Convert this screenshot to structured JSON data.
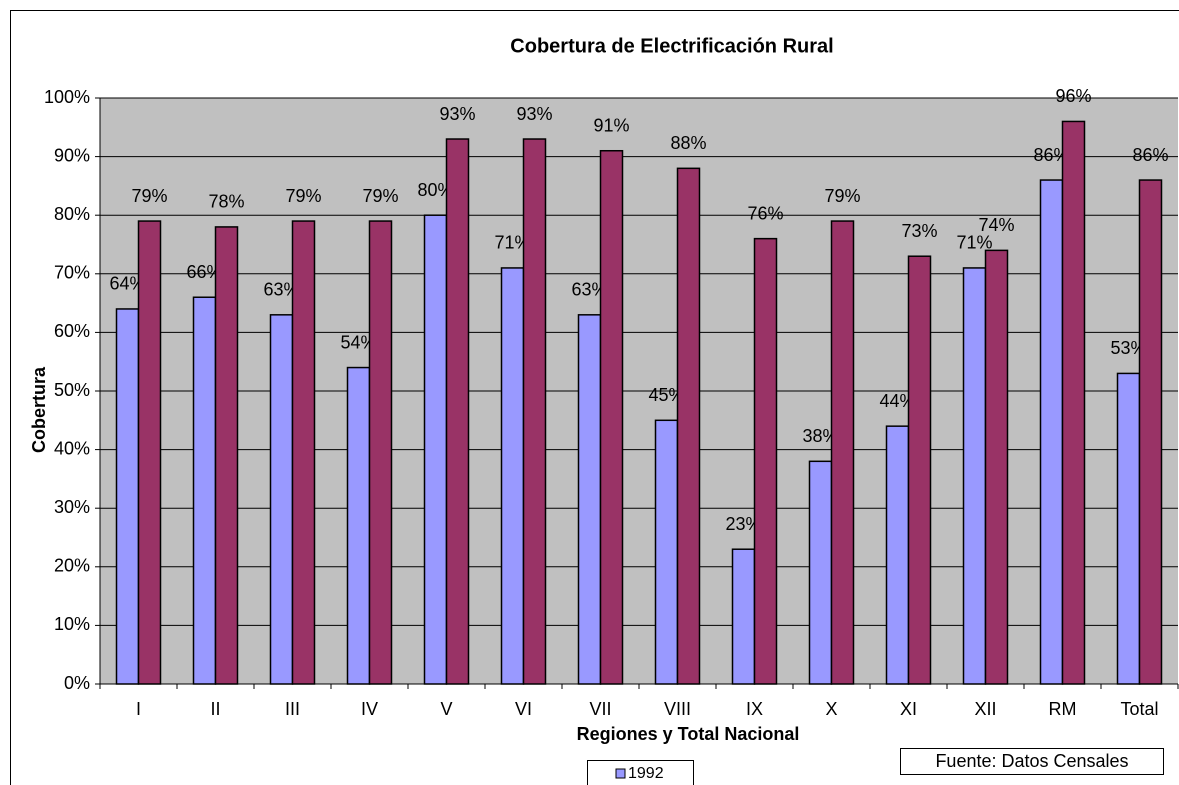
{
  "chart_data": {
    "type": "bar",
    "title": "Cobertura de Electrificación Rural",
    "x_label": "Regiones y Total Nacional",
    "y_label": "Cobertura",
    "source": "Fuente: Datos Censales",
    "categories": [
      "I",
      "II",
      "III",
      "IV",
      "V",
      "VI",
      "VII",
      "VIII",
      "IX",
      "X",
      "XI",
      "XII",
      "RM",
      "Total"
    ],
    "series": [
      {
        "name": "1992",
        "color": "#9999ff",
        "values": [
          64,
          66,
          63,
          54,
          80,
          71,
          63,
          45,
          23,
          38,
          44,
          71,
          86,
          53
        ],
        "value_labels": [
          "64%",
          "66%",
          "63%",
          "54%",
          "80%",
          "71%",
          "63%",
          "45%",
          "23%",
          "38%",
          "44%",
          "71%",
          "86%",
          "53%"
        ]
      },
      {
        "color": "#993366",
        "values": [
          79,
          78,
          79,
          79,
          93,
          93,
          91,
          88,
          76,
          79,
          73,
          74,
          96,
          86
        ],
        "value_labels": [
          "79%",
          "78%",
          "79%",
          "79%",
          "93%",
          "93%",
          "91%",
          "88%",
          "76%",
          "79%",
          "73%",
          "74%",
          "96%",
          "86%"
        ]
      }
    ],
    "ylim": [
      0,
      100
    ],
    "yticks": [
      {
        "value": 0,
        "label": "0%"
      },
      {
        "value": 10,
        "label": "10%"
      },
      {
        "value": 20,
        "label": "20%"
      },
      {
        "value": 30,
        "label": "30%"
      },
      {
        "value": 40,
        "label": "40%"
      },
      {
        "value": 50,
        "label": "50%"
      },
      {
        "value": 60,
        "label": "60%"
      },
      {
        "value": 70,
        "label": "70%"
      },
      {
        "value": 80,
        "label": "80%"
      },
      {
        "value": 90,
        "label": "90%"
      },
      {
        "value": 100,
        "label": "100%"
      }
    ],
    "grid": true,
    "plot_background": "#c0c0c0"
  }
}
